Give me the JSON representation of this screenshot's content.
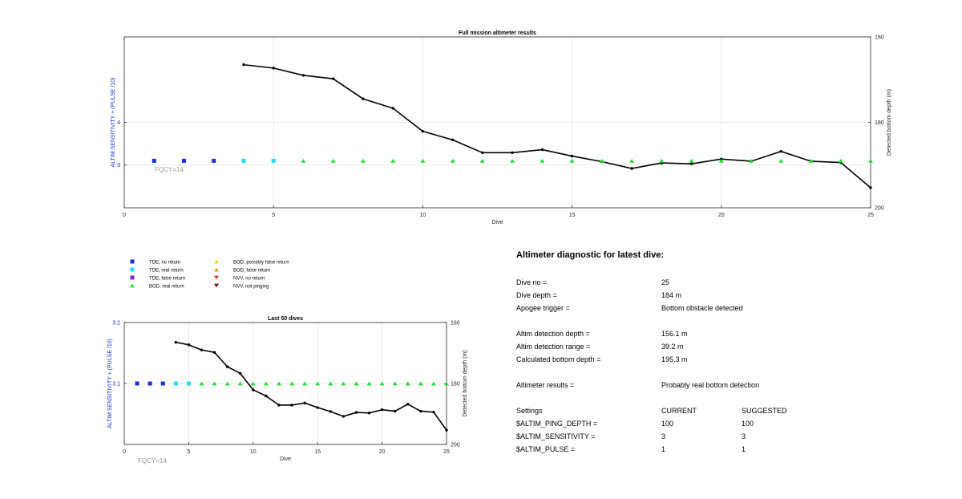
{
  "colors": {
    "tde_no_return": "#1a2fd8",
    "tde_real_return": "#25dcee",
    "tde_false_return": "#7a33c4",
    "bod_real_return": "#22dd33",
    "bod_possibly_false": "#f3d21a",
    "bod_false": "#f39a1a",
    "nvv_no_return": "#d64415",
    "nvv_not_pinging": "#7a1212",
    "depth_line": "#000000",
    "left_axis_label": "#1a2fd8",
    "grid": "#e3e3e3"
  },
  "chart_data": [
    {
      "type": "line",
      "title": "Full mission altimeter results",
      "xlabel": "Dive",
      "ylabel": "ALTIM SENSITIVITY + (PULSE /10)",
      "ylabel_right": "Detected bottom depth (m)",
      "xlim": [
        0,
        25
      ],
      "ylim": [
        2,
        6
      ],
      "ylim_right": [
        200,
        160
      ],
      "x_ticks": [
        0,
        5,
        10,
        15,
        20,
        25
      ],
      "y_ticks": [
        3,
        4
      ],
      "y_ticks_right": [
        160,
        180,
        200
      ],
      "annotation": "FQCY=14",
      "grid": true,
      "markers": [
        {
          "x": 1,
          "y": 3.1,
          "kind": "tde_no_return"
        },
        {
          "x": 2,
          "y": 3.1,
          "kind": "tde_no_return"
        },
        {
          "x": 3,
          "y": 3.1,
          "kind": "tde_no_return"
        },
        {
          "x": 4,
          "y": 3.1,
          "kind": "tde_real_return"
        },
        {
          "x": 5,
          "y": 3.1,
          "kind": "tde_real_return"
        },
        {
          "x": 6,
          "y": 3.1,
          "kind": "bod_real_return"
        },
        {
          "x": 7,
          "y": 3.1,
          "kind": "bod_real_return"
        },
        {
          "x": 8,
          "y": 3.1,
          "kind": "bod_real_return"
        },
        {
          "x": 9,
          "y": 3.1,
          "kind": "bod_real_return"
        },
        {
          "x": 10,
          "y": 3.1,
          "kind": "bod_real_return"
        },
        {
          "x": 11,
          "y": 3.1,
          "kind": "bod_real_return"
        },
        {
          "x": 12,
          "y": 3.1,
          "kind": "bod_real_return"
        },
        {
          "x": 13,
          "y": 3.1,
          "kind": "bod_real_return"
        },
        {
          "x": 14,
          "y": 3.1,
          "kind": "bod_real_return"
        },
        {
          "x": 15,
          "y": 3.1,
          "kind": "bod_real_return"
        },
        {
          "x": 16,
          "y": 3.1,
          "kind": "bod_real_return"
        },
        {
          "x": 17,
          "y": 3.1,
          "kind": "bod_real_return"
        },
        {
          "x": 18,
          "y": 3.1,
          "kind": "bod_real_return"
        },
        {
          "x": 19,
          "y": 3.1,
          "kind": "bod_real_return"
        },
        {
          "x": 20,
          "y": 3.1,
          "kind": "bod_real_return"
        },
        {
          "x": 21,
          "y": 3.1,
          "kind": "bod_real_return"
        },
        {
          "x": 22,
          "y": 3.1,
          "kind": "bod_real_return"
        },
        {
          "x": 23,
          "y": 3.1,
          "kind": "bod_real_return"
        },
        {
          "x": 24,
          "y": 3.1,
          "kind": "bod_real_return"
        },
        {
          "x": 25,
          "y": 3.1,
          "kind": "bod_real_return"
        }
      ],
      "depth": {
        "x": [
          4,
          5,
          6,
          7,
          8,
          9,
          10,
          11,
          12,
          13,
          14,
          15,
          16,
          17,
          18,
          19,
          20,
          21,
          22,
          23,
          24,
          25
        ],
        "y": [
          166.5,
          167.3,
          169.0,
          169.8,
          174.5,
          176.7,
          182.1,
          184.1,
          187.1,
          187.1,
          186.4,
          187.9,
          189.2,
          190.8,
          189.5,
          189.7,
          188.6,
          189.1,
          186.8,
          189.1,
          189.4,
          195.3
        ]
      }
    },
    {
      "type": "line",
      "title": "Last 50 dives",
      "xlabel": "Dive",
      "ylabel": "ALTIM SENSITIVITY + (PULSE /10)",
      "ylabel_right": "Detected bottom depth (m)",
      "xlim": [
        0,
        25
      ],
      "ylim": [
        3.0,
        3.2
      ],
      "ylim_right": [
        200,
        160
      ],
      "x_ticks": [
        0,
        5,
        10,
        15,
        20,
        25
      ],
      "y_ticks": [
        3.1,
        3.2
      ],
      "y_ticks_right": [
        160,
        180,
        200
      ],
      "annotation": "FQCY=14",
      "grid": true,
      "markers": [
        {
          "x": 1,
          "y": 3.1,
          "kind": "tde_no_return"
        },
        {
          "x": 2,
          "y": 3.1,
          "kind": "tde_no_return"
        },
        {
          "x": 3,
          "y": 3.1,
          "kind": "tde_no_return"
        },
        {
          "x": 4,
          "y": 3.1,
          "kind": "tde_real_return"
        },
        {
          "x": 5,
          "y": 3.1,
          "kind": "tde_real_return"
        },
        {
          "x": 6,
          "y": 3.1,
          "kind": "bod_real_return"
        },
        {
          "x": 7,
          "y": 3.1,
          "kind": "bod_real_return"
        },
        {
          "x": 8,
          "y": 3.1,
          "kind": "bod_real_return"
        },
        {
          "x": 9,
          "y": 3.1,
          "kind": "bod_real_return"
        },
        {
          "x": 10,
          "y": 3.1,
          "kind": "bod_real_return"
        },
        {
          "x": 11,
          "y": 3.1,
          "kind": "bod_real_return"
        },
        {
          "x": 12,
          "y": 3.1,
          "kind": "bod_real_return"
        },
        {
          "x": 13,
          "y": 3.1,
          "kind": "bod_real_return"
        },
        {
          "x": 14,
          "y": 3.1,
          "kind": "bod_real_return"
        },
        {
          "x": 15,
          "y": 3.1,
          "kind": "bod_real_return"
        },
        {
          "x": 16,
          "y": 3.1,
          "kind": "bod_real_return"
        },
        {
          "x": 17,
          "y": 3.1,
          "kind": "bod_real_return"
        },
        {
          "x": 18,
          "y": 3.1,
          "kind": "bod_real_return"
        },
        {
          "x": 19,
          "y": 3.1,
          "kind": "bod_real_return"
        },
        {
          "x": 20,
          "y": 3.1,
          "kind": "bod_real_return"
        },
        {
          "x": 21,
          "y": 3.1,
          "kind": "bod_real_return"
        },
        {
          "x": 22,
          "y": 3.1,
          "kind": "bod_real_return"
        },
        {
          "x": 23,
          "y": 3.1,
          "kind": "bod_real_return"
        },
        {
          "x": 24,
          "y": 3.1,
          "kind": "bod_real_return"
        },
        {
          "x": 25,
          "y": 3.1,
          "kind": "bod_real_return"
        }
      ],
      "depth": {
        "x": [
          4,
          5,
          6,
          7,
          8,
          9,
          10,
          11,
          12,
          13,
          14,
          15,
          16,
          17,
          18,
          19,
          20,
          21,
          22,
          23,
          24,
          25
        ],
        "y": [
          166.5,
          167.3,
          169.0,
          169.8,
          174.5,
          176.7,
          182.1,
          184.1,
          187.1,
          187.1,
          186.4,
          187.9,
          189.2,
          190.8,
          189.5,
          189.7,
          188.6,
          189.1,
          186.8,
          189.1,
          189.4,
          195.3
        ]
      }
    }
  ],
  "legend": {
    "items": [
      {
        "label": "TDE, no return",
        "kind": "tde_no_return",
        "shape": "square"
      },
      {
        "label": "TDE, real return",
        "kind": "tde_real_return",
        "shape": "square"
      },
      {
        "label": "TDE, false return",
        "kind": "tde_false_return",
        "shape": "square"
      },
      {
        "label": "BOD, real return",
        "kind": "bod_real_return",
        "shape": "triangle-up"
      },
      {
        "label": "BOD, possibly false return",
        "kind": "bod_possibly_false",
        "shape": "triangle-up"
      },
      {
        "label": "BOD, false return",
        "kind": "bod_false",
        "shape": "triangle-up"
      },
      {
        "label": "NVV, no return",
        "kind": "nvv_no_return",
        "shape": "triangle-down"
      },
      {
        "label": "NVV, not pinging",
        "kind": "nvv_not_pinging",
        "shape": "triangle-down"
      }
    ]
  },
  "diagnostic": {
    "title": "Altimeter diagnostic for latest dive:",
    "dive_no_label": "Dive no =",
    "dive_no": "25",
    "dive_depth_label": "Dive depth =",
    "dive_depth": "184 m",
    "apogee_label": "Apogee trigger =",
    "apogee": "Bottom obstacle detected",
    "det_depth_label": "Altim detection depth =",
    "det_depth": "156.1 m",
    "det_range_label": "Altim detection range =",
    "det_range": "39.2 m",
    "calc_depth_label": "Calculated bottom depth =",
    "calc_depth": "195.3 m",
    "results_label": "Altimeter results =",
    "results": "Probably real bottom detection",
    "settings_label": "Settings",
    "current_label": "CURRENT",
    "suggested_label": "SUGGESTED",
    "ping_label": "$ALTIM_PING_DEPTH =",
    "ping_current": "100",
    "ping_suggested": "100",
    "sens_label": "$ALTIM_SENSITIVITY =",
    "sens_current": "3",
    "sens_suggested": "3",
    "pulse_label": "$ALTIM_PULSE =",
    "pulse_current": "1",
    "pulse_suggested": "1"
  }
}
